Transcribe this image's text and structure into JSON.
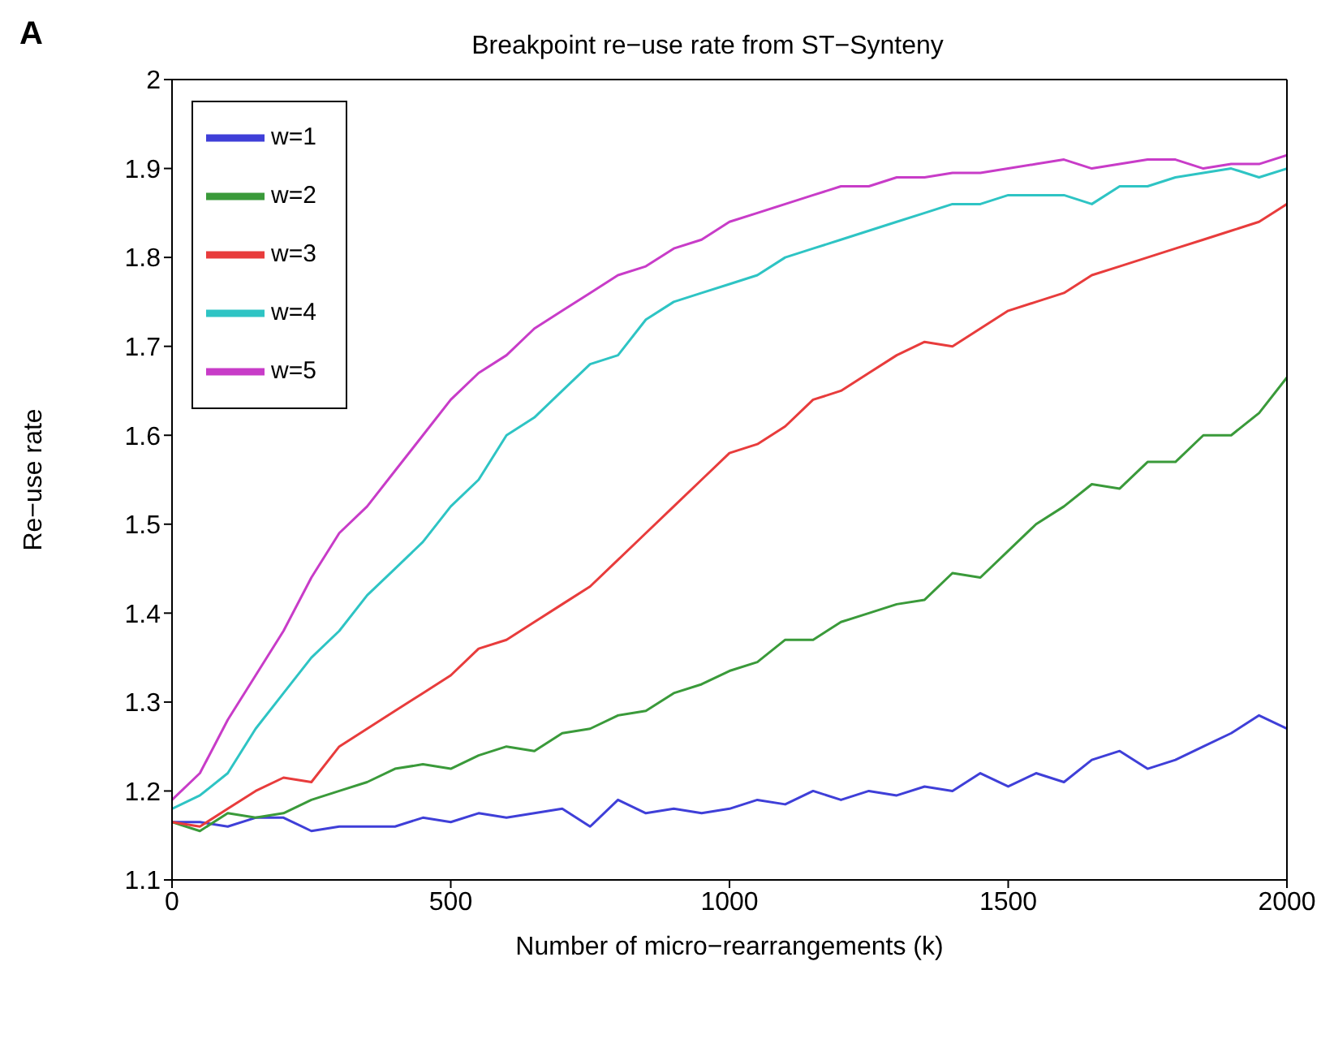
{
  "chart_data": {
    "type": "line",
    "title": "Breakpoint re−use rate from ST−Synteny",
    "xlabel": "Number of micro−rearrangements (k)",
    "ylabel": "Re−use rate",
    "annotations": [
      "A"
    ],
    "x": [
      0,
      50,
      100,
      150,
      200,
      250,
      300,
      350,
      400,
      450,
      500,
      550,
      600,
      650,
      700,
      750,
      800,
      850,
      900,
      950,
      1000,
      1050,
      1100,
      1150,
      1200,
      1250,
      1300,
      1350,
      1400,
      1450,
      1500,
      1550,
      1600,
      1650,
      1700,
      1750,
      1800,
      1850,
      1900,
      1950,
      2000
    ],
    "xlim": [
      0,
      2000
    ],
    "xticks": [
      0,
      500,
      1000,
      1500,
      2000
    ],
    "ylim": [
      1.1,
      2
    ],
    "yticks": [
      1.1,
      1.2,
      1.3,
      1.4,
      1.5,
      1.6,
      1.7,
      1.8,
      1.9,
      2
    ],
    "grid": false,
    "legend": "top left",
    "marker": "none",
    "line_style": "solid",
    "series": [
      {
        "name": "w=1",
        "color": "#3f3fd8",
        "values": [
          1.165,
          1.165,
          1.16,
          1.17,
          1.17,
          1.155,
          1.16,
          1.16,
          1.16,
          1.17,
          1.165,
          1.175,
          1.17,
          1.175,
          1.18,
          1.16,
          1.19,
          1.175,
          1.18,
          1.175,
          1.18,
          1.19,
          1.185,
          1.2,
          1.19,
          1.2,
          1.195,
          1.205,
          1.2,
          1.22,
          1.205,
          1.22,
          1.21,
          1.235,
          1.245,
          1.225,
          1.235,
          1.25,
          1.265,
          1.285,
          1.27
        ]
      },
      {
        "name": "w=2",
        "color": "#3a9a3a",
        "values": [
          1.165,
          1.155,
          1.175,
          1.17,
          1.175,
          1.19,
          1.2,
          1.21,
          1.225,
          1.23,
          1.225,
          1.24,
          1.25,
          1.245,
          1.265,
          1.27,
          1.285,
          1.29,
          1.31,
          1.32,
          1.335,
          1.345,
          1.37,
          1.37,
          1.39,
          1.4,
          1.41,
          1.415,
          1.445,
          1.44,
          1.47,
          1.5,
          1.52,
          1.545,
          1.54,
          1.57,
          1.57,
          1.6,
          1.6,
          1.625,
          1.665
        ]
      },
      {
        "name": "w=3",
        "color": "#e83c3c",
        "values": [
          1.165,
          1.16,
          1.18,
          1.2,
          1.215,
          1.21,
          1.25,
          1.27,
          1.29,
          1.31,
          1.33,
          1.36,
          1.37,
          1.39,
          1.41,
          1.43,
          1.46,
          1.49,
          1.52,
          1.55,
          1.58,
          1.59,
          1.61,
          1.64,
          1.65,
          1.67,
          1.69,
          1.705,
          1.7,
          1.72,
          1.74,
          1.75,
          1.76,
          1.78,
          1.79,
          1.8,
          1.81,
          1.82,
          1.83,
          1.84,
          1.86
        ]
      },
      {
        "name": "w=4",
        "color": "#2ec4c4",
        "values": [
          1.18,
          1.195,
          1.22,
          1.27,
          1.31,
          1.35,
          1.38,
          1.42,
          1.45,
          1.48,
          1.52,
          1.55,
          1.6,
          1.62,
          1.65,
          1.68,
          1.69,
          1.73,
          1.75,
          1.76,
          1.77,
          1.78,
          1.8,
          1.81,
          1.82,
          1.83,
          1.84,
          1.85,
          1.86,
          1.86,
          1.87,
          1.87,
          1.87,
          1.86,
          1.88,
          1.88,
          1.89,
          1.895,
          1.9,
          1.89,
          1.9
        ]
      },
      {
        "name": "w=5",
        "color": "#c83cc8",
        "values": [
          1.19,
          1.22,
          1.28,
          1.33,
          1.38,
          1.44,
          1.49,
          1.52,
          1.56,
          1.6,
          1.64,
          1.67,
          1.69,
          1.72,
          1.74,
          1.76,
          1.78,
          1.79,
          1.81,
          1.82,
          1.84,
          1.85,
          1.86,
          1.87,
          1.88,
          1.88,
          1.89,
          1.89,
          1.895,
          1.895,
          1.9,
          1.905,
          1.91,
          1.9,
          1.905,
          1.91,
          1.91,
          1.9,
          1.905,
          1.905,
          1.915
        ]
      }
    ]
  }
}
